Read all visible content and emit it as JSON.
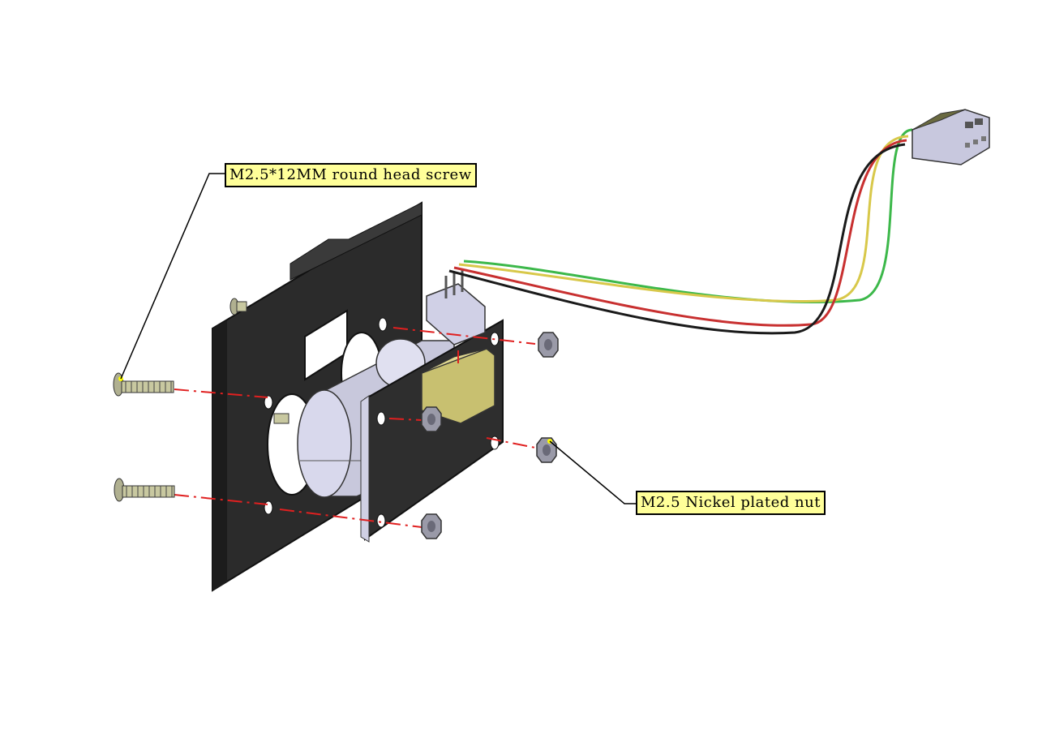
{
  "callouts": {
    "screw_label": "M2.5*12MM round head screw",
    "nut_label": "M2.5 Nickel plated nut"
  },
  "colors": {
    "callout_fill": "#ffff99",
    "plate": "#2f2f2f",
    "motor_body": "#cfcfe6",
    "dash_line": "#e02020",
    "wire_green": "#3cb84a",
    "wire_yellow": "#d8c84a",
    "wire_red": "#c83030",
    "wire_black": "#1a1a1a",
    "connector": "#c8c8de",
    "nut": "#9a9aa8",
    "screw": "#b8b890"
  }
}
